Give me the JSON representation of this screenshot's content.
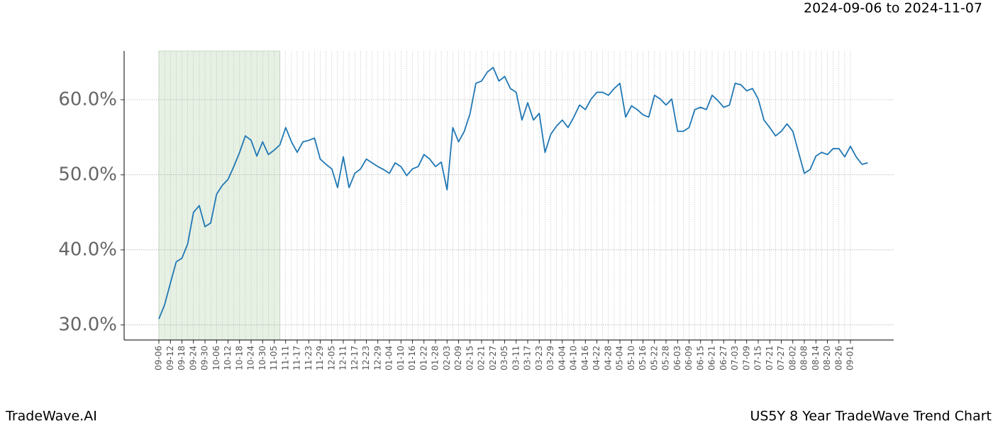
{
  "chart_data": {
    "type": "line",
    "subtitle": "2024-09-06 to 2024-11-07",
    "footer_left": "TradeWave.AI",
    "footer_right": "US5Y 8 Year TradeWave Trend Chart",
    "categories": [
      "09-06",
      null,
      "09-12",
      null,
      "09-18",
      null,
      "09-24",
      null,
      "09-30",
      null,
      "10-06",
      null,
      "10-12",
      null,
      "10-18",
      null,
      "10-24",
      null,
      "10-30",
      null,
      "11-05",
      null,
      "11-11",
      null,
      "11-17",
      null,
      "11-23",
      null,
      "11-29",
      null,
      "12-05",
      null,
      "12-11",
      null,
      "12-17",
      null,
      "12-23",
      null,
      "12-29",
      null,
      "01-04",
      null,
      "01-10",
      null,
      "01-16",
      null,
      "01-22",
      null,
      "01-28",
      null,
      "02-03",
      null,
      "02-09",
      null,
      "02-15",
      null,
      "02-21",
      null,
      "02-27",
      null,
      "03-05",
      null,
      "03-11",
      null,
      "03-17",
      null,
      "03-23",
      null,
      "03-29",
      null,
      "04-04",
      null,
      "04-10",
      null,
      "04-16",
      null,
      "04-22",
      null,
      "04-28",
      null,
      "05-04",
      null,
      "05-10",
      null,
      "05-16",
      null,
      "05-22",
      null,
      "05-28",
      null,
      "06-03",
      null,
      "06-09",
      null,
      "06-15",
      null,
      "06-21",
      null,
      "06-27",
      null,
      "07-03",
      null,
      "07-09",
      null,
      "07-15",
      null,
      "07-21",
      null,
      "07-27",
      null,
      "08-02",
      null,
      "08-08",
      null,
      "08-14",
      null,
      "08-20",
      null,
      "08-26",
      null,
      "09-01",
      null,
      null,
      null
    ],
    "series": [
      {
        "color": "#1f77b4",
        "values": [
          30.8,
          32.7,
          35.6,
          38.4,
          38.9,
          40.8,
          45.0,
          45.9,
          43.1,
          43.6,
          47.4,
          48.6,
          49.4,
          51.1,
          53.0,
          55.2,
          54.6,
          52.5,
          54.4,
          52.7,
          53.3,
          54.0,
          56.3,
          54.4,
          53.0,
          54.4,
          54.6,
          54.9,
          52.1,
          51.4,
          50.8,
          48.3,
          52.4,
          48.3,
          50.2,
          50.8,
          52.1,
          51.6,
          51.1,
          50.7,
          50.2,
          51.6,
          51.1,
          49.9,
          50.8,
          51.1,
          52.7,
          52.1,
          51.1,
          51.7,
          48.0,
          56.3,
          54.4,
          55.8,
          58.2,
          62.2,
          62.5,
          63.7,
          64.3,
          62.5,
          63.1,
          61.5,
          61.0,
          57.3,
          59.6,
          57.3,
          58.2,
          53.0,
          55.4,
          56.5,
          57.3,
          56.3,
          57.7,
          59.3,
          58.7,
          60.1,
          61.0,
          61.0,
          60.6,
          61.5,
          62.2,
          57.7,
          59.2,
          58.7,
          58.0,
          57.7,
          60.6,
          60.1,
          59.3,
          60.1,
          55.8,
          55.8,
          56.3,
          58.7,
          59.0,
          58.7,
          60.6,
          59.9,
          59.0,
          59.3,
          62.2,
          62.0,
          61.2,
          61.5,
          60.1,
          57.3,
          56.3,
          55.2,
          55.8,
          56.8,
          55.8,
          53.0,
          50.2,
          50.7,
          52.5,
          53.0,
          52.7,
          53.5,
          53.5,
          52.4,
          53.8,
          52.4,
          51.4,
          51.6
        ]
      }
    ],
    "highlight_range": [
      0,
      21
    ],
    "highlight_color": "#e6f1e4",
    "ylim": [
      28,
      66.5
    ],
    "yticks": [
      {
        "value": 30,
        "label": "30.0%"
      },
      {
        "value": 40,
        "label": "40.0%"
      },
      {
        "value": 50,
        "label": "50.0%"
      },
      {
        "value": 60,
        "label": "60.0%"
      }
    ],
    "grid": true
  }
}
